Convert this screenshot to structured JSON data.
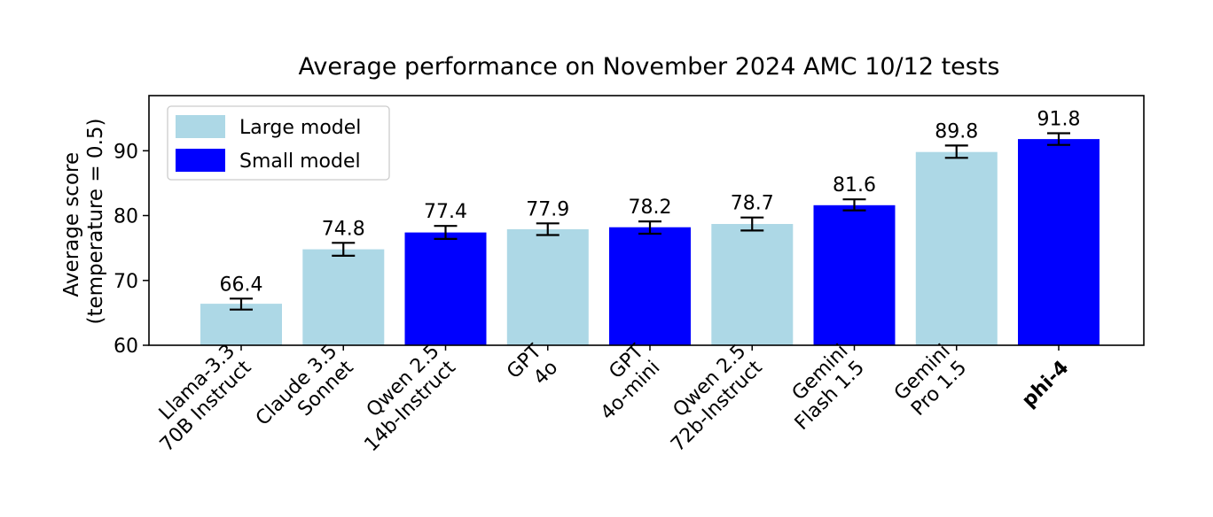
{
  "chart_data": {
    "type": "bar",
    "title": "Average performance on November 2024 AMC 10/12 tests",
    "ylabel": [
      "Average score",
      "(temperature = 0.5)"
    ],
    "xlabel": "",
    "ylim": [
      60,
      98.5
    ],
    "yticks": [
      60,
      70,
      80,
      90
    ],
    "grid": false,
    "legend": {
      "placement": "top-left",
      "entries": [
        {
          "name": "Large model",
          "color": "#add8e6"
        },
        {
          "name": "Small model",
          "color": "#0000ff"
        }
      ]
    },
    "categories": [
      {
        "lines": [
          "Llama-3.3",
          "70B Instruct"
        ],
        "bold": false
      },
      {
        "lines": [
          "Claude 3.5",
          "Sonnet"
        ],
        "bold": false
      },
      {
        "lines": [
          "Qwen 2.5",
          "14b-Instruct"
        ],
        "bold": false
      },
      {
        "lines": [
          "GPT",
          "4o"
        ],
        "bold": false
      },
      {
        "lines": [
          "GPT",
          "4o-mini"
        ],
        "bold": false
      },
      {
        "lines": [
          "Qwen 2.5",
          "72b-Instruct"
        ],
        "bold": false
      },
      {
        "lines": [
          "Gemini",
          "Flash 1.5"
        ],
        "bold": false
      },
      {
        "lines": [
          "Gemini",
          "Pro 1.5"
        ],
        "bold": false
      },
      {
        "lines": [
          "phi-4"
        ],
        "bold": true
      }
    ],
    "values": [
      66.4,
      74.8,
      77.4,
      77.9,
      78.2,
      78.7,
      81.6,
      89.8,
      91.8
    ],
    "value_labels": [
      "66.4",
      "74.8",
      "77.4",
      "77.9",
      "78.2",
      "78.7",
      "81.6",
      "89.8",
      "91.8"
    ],
    "error_low": [
      65.5,
      73.8,
      76.4,
      77.0,
      77.2,
      77.7,
      80.8,
      88.9,
      90.9
    ],
    "error_high": [
      67.2,
      75.8,
      78.4,
      78.8,
      79.1,
      79.7,
      82.5,
      90.8,
      92.7
    ],
    "groups": [
      "Large model",
      "Large model",
      "Small model",
      "Large model",
      "Small model",
      "Large model",
      "Small model",
      "Large model",
      "Small model"
    ]
  }
}
